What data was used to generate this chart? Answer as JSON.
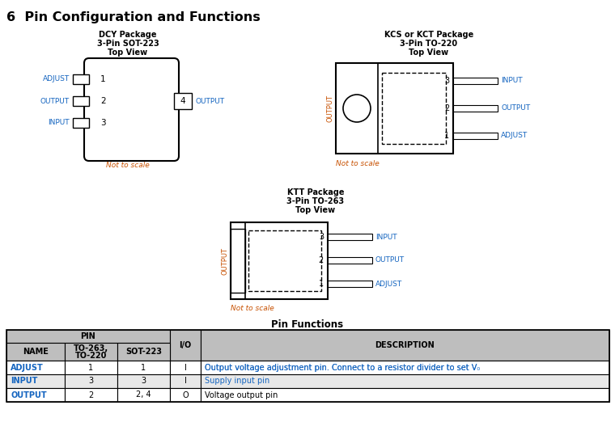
{
  "title": "6  Pin Configuration and Functions",
  "bg_color": "#ffffff",
  "text_color": "#000000",
  "blue_color": "#1565C0",
  "orange_color": "#C75000",
  "dcy_title": [
    "DCY Package",
    "3-Pin SOT-223",
    "Top View"
  ],
  "kcs_title": [
    "KCS or KCT Package",
    "3-Pin TO-220",
    "Top View"
  ],
  "ktt_title": [
    "KTT Package",
    "3-Pin TO-263",
    "Top View"
  ],
  "not_to_scale": "Not to scale",
  "pin_functions_title": "Pin Functions",
  "table_header_bg": "#BEBEBE",
  "table_data": [
    [
      "ADJUST",
      "1",
      "1",
      "I",
      "Output voltage adjustment pin. Connect to a resistor divider to set V₀"
    ],
    [
      "INPUT",
      "3",
      "3",
      "I",
      "Supply input pin"
    ],
    [
      "OUTPUT",
      "2",
      "2, 4",
      "O",
      "Voltage output pin"
    ]
  ]
}
